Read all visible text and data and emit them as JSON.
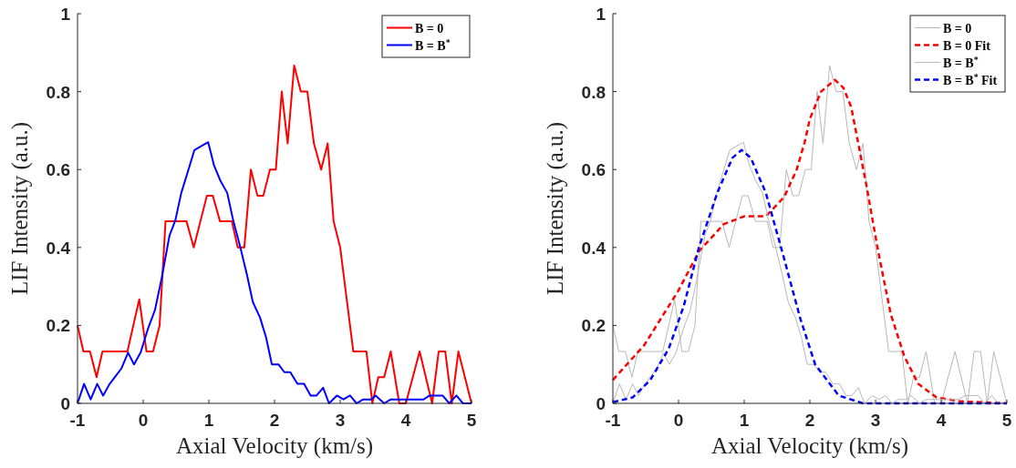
{
  "chart_data": [
    {
      "type": "line",
      "xlabel": "Axial Velocity (km/s)",
      "ylabel": "LIF Intensity (a.u.)",
      "xlim": [
        -1,
        5
      ],
      "xticks": [
        -1,
        0,
        1,
        2,
        3,
        4,
        5
      ],
      "ylim": [
        0,
        1
      ],
      "yticks": [
        0,
        0.2,
        0.4,
        0.6,
        0.8,
        1
      ],
      "grid": false,
      "legend": "top right",
      "marker": "none",
      "series": [
        {
          "name": "B = 0",
          "color": "#ff0000",
          "line_style": "solid",
          "x": [
            -1,
            -0.91,
            -0.81,
            -0.71,
            -0.62,
            -0.24,
            -0.06,
            0.05,
            0.15,
            0.25,
            0.34,
            0.66,
            0.77,
            0.97,
            1.06,
            1.17,
            1.35,
            1.44,
            1.54,
            1.64,
            1.74,
            1.83,
            1.93,
            2.02,
            2.11,
            2.2,
            2.3,
            2.4,
            2.5,
            2.6,
            2.71,
            2.81,
            2.9,
            3,
            3.2,
            3.4,
            3.49,
            3.58,
            3.67,
            3.77,
            3.9,
            4,
            4.21,
            4.4,
            4.5,
            4.6,
            4.7,
            4.8,
            5
          ],
          "values": [
            0.2,
            0.133,
            0.133,
            0.067,
            0.133,
            0.133,
            0.267,
            0.133,
            0.133,
            0.2,
            0.467,
            0.467,
            0.4,
            0.533,
            0.533,
            0.467,
            0.467,
            0.4,
            0.4,
            0.6,
            0.533,
            0.533,
            0.6,
            0.6,
            0.8,
            0.667,
            0.867,
            0.8,
            0.8,
            0.667,
            0.6,
            0.667,
            0.467,
            0.4,
            0.133,
            0.133,
            0,
            0.067,
            0.067,
            0.133,
            0,
            0,
            0.133,
            0,
            0.133,
            0.133,
            0,
            0.133,
            0
          ]
        },
        {
          "name": "B = B$^{*}$",
          "color": "#0000ff",
          "line_style": "solid",
          "x": [
            -1,
            -0.9,
            -0.8,
            -0.7,
            -0.61,
            -0.51,
            -0.42,
            -0.33,
            -0.23,
            -0.14,
            -0.04,
            0.07,
            0.18,
            0.28,
            0.4,
            0.49,
            0.58,
            0.69,
            0.78,
            0.88,
            0.99,
            1.08,
            1.18,
            1.28,
            1.37,
            1.48,
            1.58,
            1.67,
            1.78,
            1.87,
            1.96,
            2.06,
            2.15,
            2.24,
            2.35,
            2.45,
            2.55,
            2.64,
            2.74,
            2.83,
            2.95,
            3.05,
            3.15,
            3.25,
            3.35,
            3.47,
            3.54,
            3.67,
            3.77,
            4.27,
            4.36,
            4.56,
            4.66,
            4.77,
            4.87,
            4.97,
            5
          ],
          "values": [
            0,
            0.05,
            0.01,
            0.05,
            0.02,
            0.05,
            0.07,
            0.09,
            0.13,
            0.1,
            0.13,
            0.19,
            0.24,
            0.32,
            0.43,
            0.47,
            0.54,
            0.6,
            0.65,
            0.66,
            0.67,
            0.61,
            0.57,
            0.54,
            0.47,
            0.4,
            0.33,
            0.26,
            0.22,
            0.17,
            0.1,
            0.1,
            0.08,
            0.08,
            0.05,
            0.05,
            0.02,
            0.02,
            0.04,
            0,
            0.02,
            0.01,
            0.02,
            0,
            0.01,
            0.01,
            0.02,
            0,
            0.01,
            0.01,
            0.02,
            0.02,
            0,
            0.02,
            0,
            0,
            0
          ]
        }
      ]
    },
    {
      "type": "line",
      "xlabel": "Axial Velocity (km/s)",
      "ylabel": "LIF Intensity (a.u.)",
      "xlim": [
        -1,
        5
      ],
      "xticks": [
        -1,
        0,
        1,
        2,
        3,
        4,
        5
      ],
      "ylim": [
        0,
        1
      ],
      "yticks": [
        0,
        0.2,
        0.4,
        0.6,
        0.8,
        1
      ],
      "grid": false,
      "legend": "top right",
      "marker": "none",
      "series": [
        {
          "name": "B = 0",
          "color": "#b8b8b8",
          "line_style": "solid",
          "x": [
            -1,
            -0.91,
            -0.81,
            -0.71,
            -0.62,
            -0.24,
            -0.06,
            0.05,
            0.15,
            0.25,
            0.34,
            0.66,
            0.77,
            0.97,
            1.06,
            1.17,
            1.35,
            1.44,
            1.54,
            1.64,
            1.74,
            1.83,
            1.93,
            2.02,
            2.11,
            2.2,
            2.3,
            2.4,
            2.5,
            2.6,
            2.71,
            2.81,
            2.9,
            3,
            3.2,
            3.4,
            3.49,
            3.58,
            3.67,
            3.77,
            3.9,
            4,
            4.21,
            4.4,
            4.5,
            4.6,
            4.7,
            4.8,
            5
          ],
          "values": [
            0.2,
            0.133,
            0.133,
            0.067,
            0.133,
            0.133,
            0.267,
            0.133,
            0.133,
            0.2,
            0.467,
            0.467,
            0.4,
            0.533,
            0.533,
            0.467,
            0.467,
            0.4,
            0.4,
            0.6,
            0.533,
            0.533,
            0.6,
            0.6,
            0.8,
            0.667,
            0.867,
            0.8,
            0.8,
            0.667,
            0.6,
            0.667,
            0.467,
            0.4,
            0.133,
            0.133,
            0,
            0.067,
            0.067,
            0.133,
            0,
            0,
            0.133,
            0,
            0.133,
            0.133,
            0,
            0.133,
            0
          ]
        },
        {
          "name": "B = 0 Fit",
          "color": "#ff0000",
          "line_style": "dashed",
          "x": [
            -1,
            -0.52,
            0,
            0.31,
            0.69,
            1,
            1.33,
            1.5,
            1.61,
            1.8,
            1.92,
            2,
            2.17,
            2.38,
            2.51,
            2.63,
            2.86,
            3.04,
            3.23,
            3.44,
            3.65,
            3.93,
            4.3,
            5
          ],
          "values": [
            0.06,
            0.15,
            0.29,
            0.39,
            0.46,
            0.48,
            0.48,
            0.51,
            0.53,
            0.6,
            0.67,
            0.73,
            0.8,
            0.83,
            0.81,
            0.76,
            0.56,
            0.39,
            0.23,
            0.12,
            0.05,
            0.015,
            0.005,
            0
          ]
        },
        {
          "name": "B = B$^{*}$",
          "color": "#b8b8b8",
          "line_style": "solid",
          "x": [
            -1,
            -0.9,
            -0.8,
            -0.7,
            -0.61,
            -0.51,
            -0.42,
            -0.33,
            -0.23,
            -0.14,
            -0.04,
            0.07,
            0.18,
            0.28,
            0.4,
            0.49,
            0.58,
            0.69,
            0.78,
            0.88,
            0.99,
            1.08,
            1.18,
            1.28,
            1.37,
            1.48,
            1.58,
            1.67,
            1.78,
            1.87,
            1.96,
            2.06,
            2.15,
            2.24,
            2.35,
            2.45,
            2.55,
            2.64,
            2.74,
            2.83,
            2.95,
            3.05,
            3.15,
            3.25,
            3.35,
            3.47,
            3.54,
            3.67,
            3.77,
            4.27,
            4.36,
            4.56,
            4.66,
            4.77,
            4.87,
            4.97,
            5
          ],
          "values": [
            0,
            0.05,
            0.01,
            0.05,
            0.02,
            0.05,
            0.07,
            0.09,
            0.13,
            0.1,
            0.13,
            0.19,
            0.24,
            0.32,
            0.43,
            0.47,
            0.54,
            0.6,
            0.65,
            0.66,
            0.67,
            0.61,
            0.57,
            0.54,
            0.47,
            0.4,
            0.33,
            0.26,
            0.22,
            0.17,
            0.1,
            0.1,
            0.08,
            0.08,
            0.05,
            0.05,
            0.02,
            0.02,
            0.04,
            0,
            0.02,
            0.01,
            0.02,
            0,
            0.01,
            0.01,
            0.02,
            0,
            0.01,
            0.01,
            0.02,
            0.02,
            0,
            0.02,
            0,
            0,
            0
          ]
        },
        {
          "name": "B = B$^{*}$ Fit",
          "color": "#0000ff",
          "line_style": "dashed",
          "x": [
            -1,
            -0.7,
            -0.43,
            -0.15,
            0.08,
            0.31,
            0.59,
            0.82,
            0.96,
            1.1,
            1.33,
            1.61,
            1.85,
            2.08,
            2.17,
            2.44,
            2.81,
            5
          ],
          "values": [
            0.003,
            0.015,
            0.06,
            0.14,
            0.25,
            0.4,
            0.54,
            0.63,
            0.65,
            0.63,
            0.54,
            0.37,
            0.22,
            0.1,
            0.08,
            0.02,
            0,
            0
          ]
        }
      ]
    }
  ]
}
